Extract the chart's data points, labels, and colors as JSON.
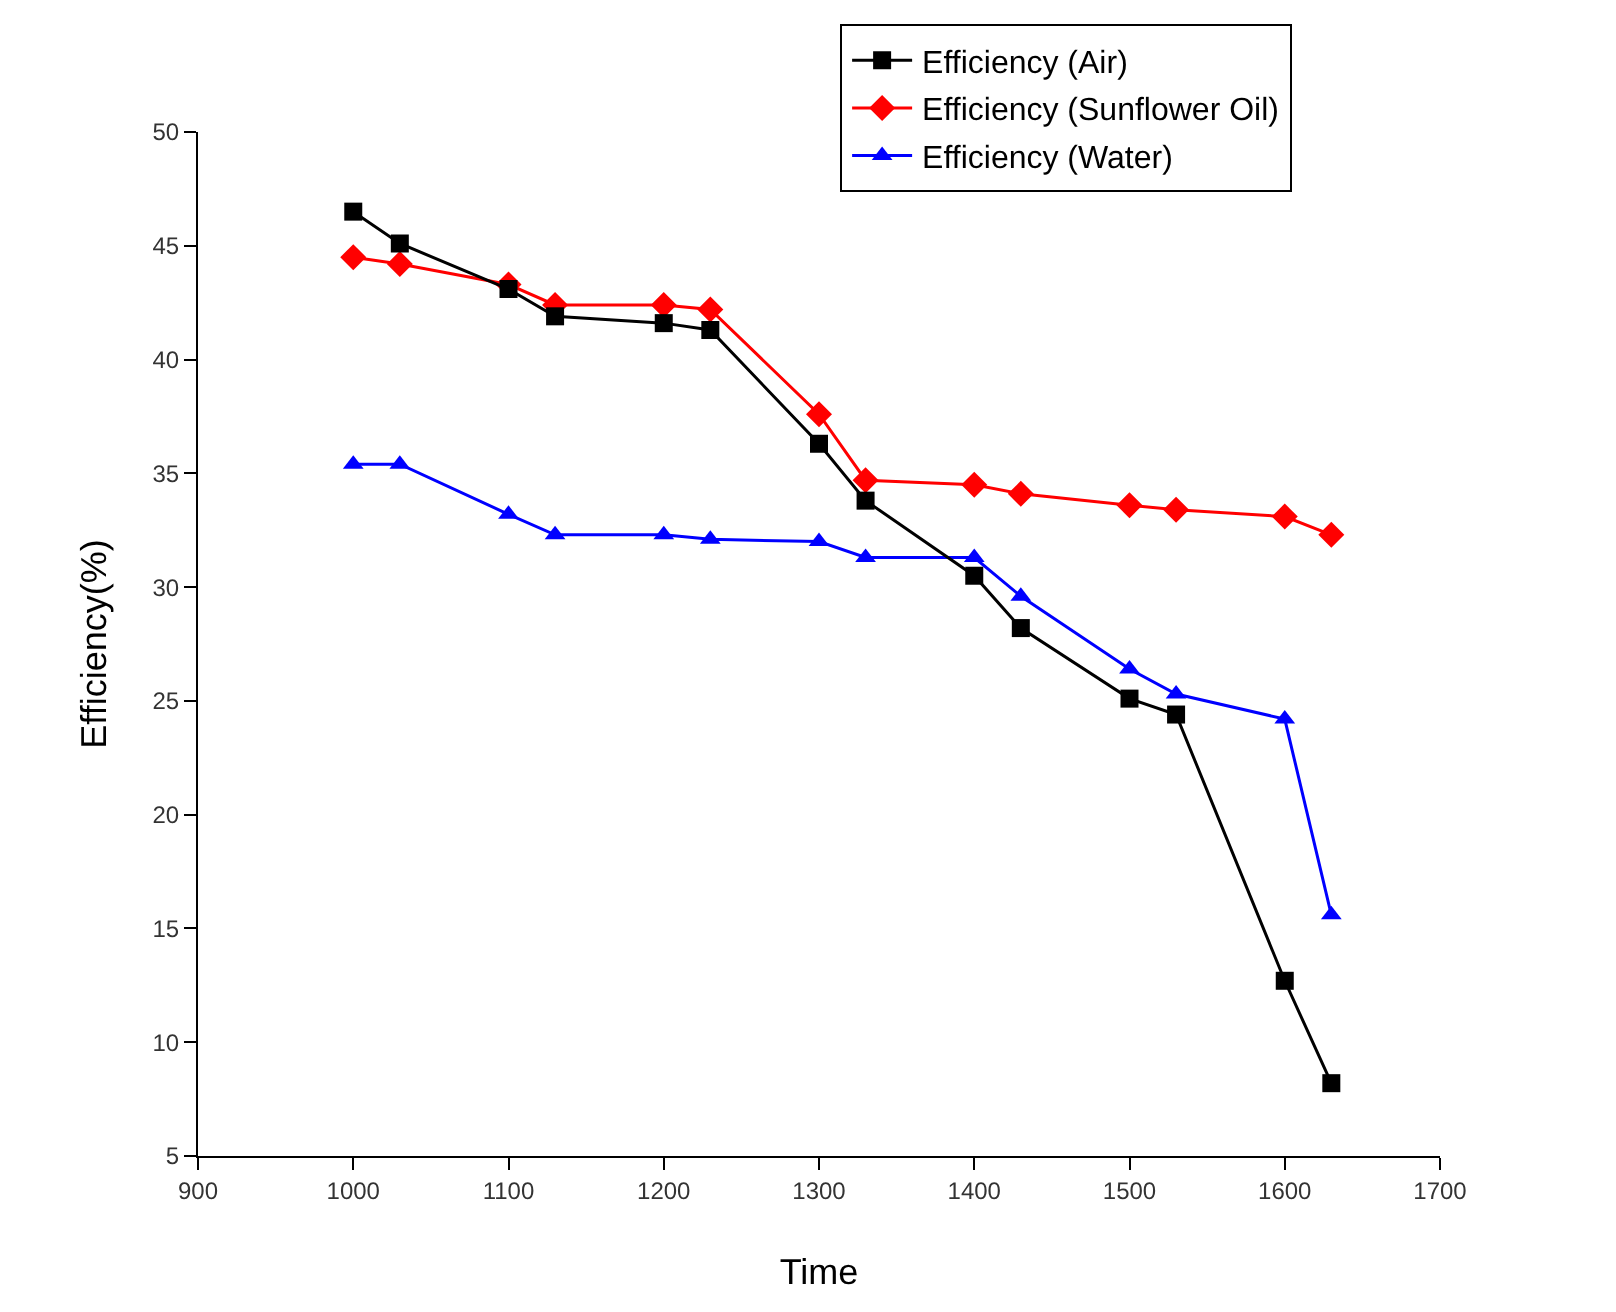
{
  "chart_data": {
    "type": "line",
    "xlabel": "Time",
    "ylabel": "Efficiency(%)",
    "xlim": [
      900,
      1700
    ],
    "xticks": [
      900,
      1000,
      1100,
      1200,
      1300,
      1400,
      1500,
      1600,
      1700
    ],
    "ylim": [
      5,
      50
    ],
    "yticks": [
      5,
      10,
      15,
      20,
      25,
      30,
      35,
      40,
      45,
      50
    ],
    "grid": false,
    "legend": "top right",
    "x": [
      1000,
      1030,
      1100,
      1130,
      1200,
      1230,
      1300,
      1330,
      1400,
      1430,
      1500,
      1530,
      1600,
      1630
    ],
    "series": [
      {
        "name": "Efficiency (Air)",
        "color": "#000000",
        "marker": "square",
        "values": [
          46.5,
          45.1,
          43.1,
          41.9,
          41.6,
          41.3,
          36.3,
          33.8,
          30.5,
          28.2,
          25.1,
          24.4,
          12.7,
          8.2
        ]
      },
      {
        "name": "Efficiency (Sunflower Oil)",
        "color": "#ff0000",
        "marker": "diamond",
        "values": [
          44.5,
          44.2,
          43.3,
          42.4,
          42.4,
          42.2,
          37.6,
          34.7,
          34.5,
          34.1,
          33.6,
          33.4,
          33.1,
          32.3
        ]
      },
      {
        "name": "Efficiency (Water)",
        "color": "#0000ff",
        "marker": "triangle",
        "values": [
          35.4,
          35.4,
          33.2,
          32.3,
          32.3,
          32.1,
          32.0,
          31.3,
          31.3,
          29.6,
          26.4,
          25.3,
          24.2,
          15.6
        ]
      }
    ]
  }
}
